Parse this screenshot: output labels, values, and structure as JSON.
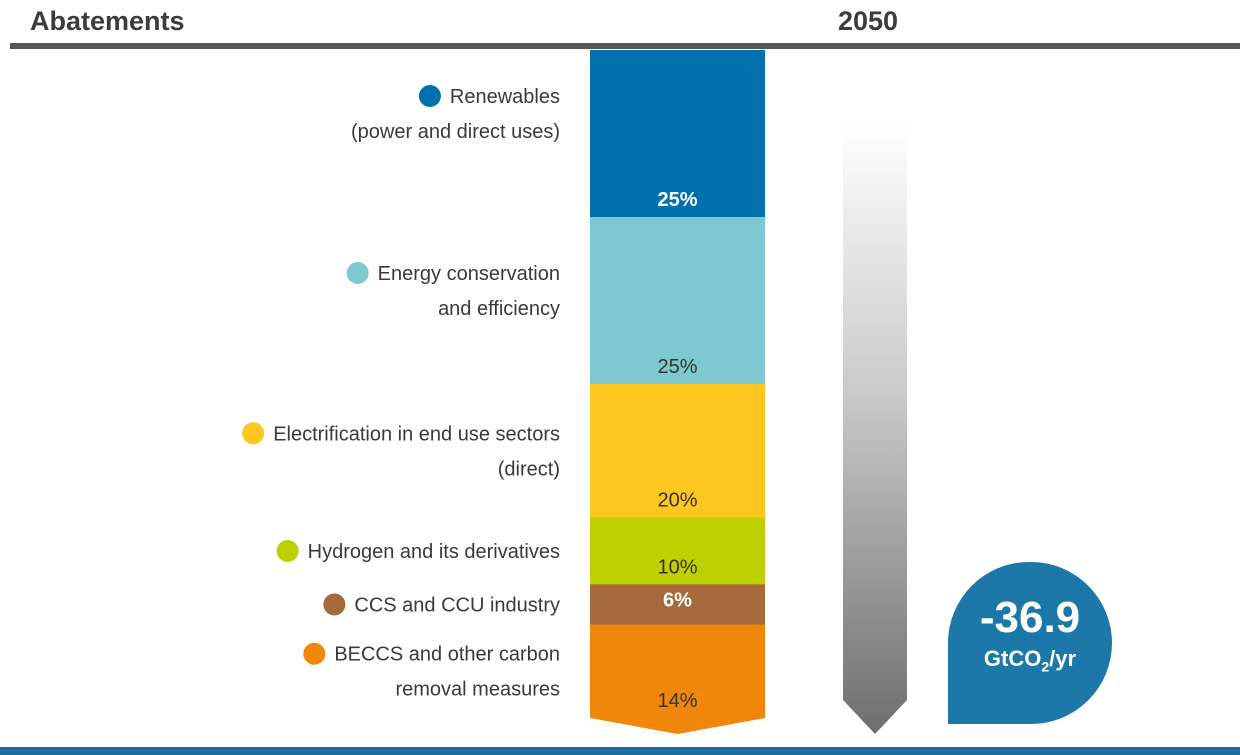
{
  "header": {
    "title": "Abatements",
    "year": "2050"
  },
  "total": {
    "value": "-36.9",
    "unit_prefix": "GtCO",
    "unit_sub": "2",
    "unit_suffix": "/yr",
    "color": "#1b78a8"
  },
  "chart_data": {
    "type": "bar",
    "orientation": "stacked-vertical",
    "categories": [
      "2050"
    ],
    "series": [
      {
        "name_lines": [
          "Renewables",
          "(power and direct uses)"
        ],
        "value": 25,
        "label": "25%",
        "color": "#0071ad"
      },
      {
        "name_lines": [
          "Energy conservation",
          "and efficiency"
        ],
        "value": 25,
        "label": "25%",
        "color": "#7ec8d0"
      },
      {
        "name_lines": [
          "Electrification in end use sectors",
          "(direct)"
        ],
        "value": 20,
        "label": "20%",
        "color": "#fdc71f"
      },
      {
        "name_lines": [
          "Hydrogen and its derivatives"
        ],
        "value": 10,
        "label": "10%",
        "color": "#bfd000"
      },
      {
        "name_lines": [
          "CCS and CCU industry"
        ],
        "value": 6,
        "label": "6%",
        "color": "#a6693c"
      },
      {
        "name_lines": [
          "BECCS and other carbon",
          "removal measures"
        ],
        "value": 14,
        "label": "14%",
        "color": "#f0870a"
      }
    ]
  }
}
